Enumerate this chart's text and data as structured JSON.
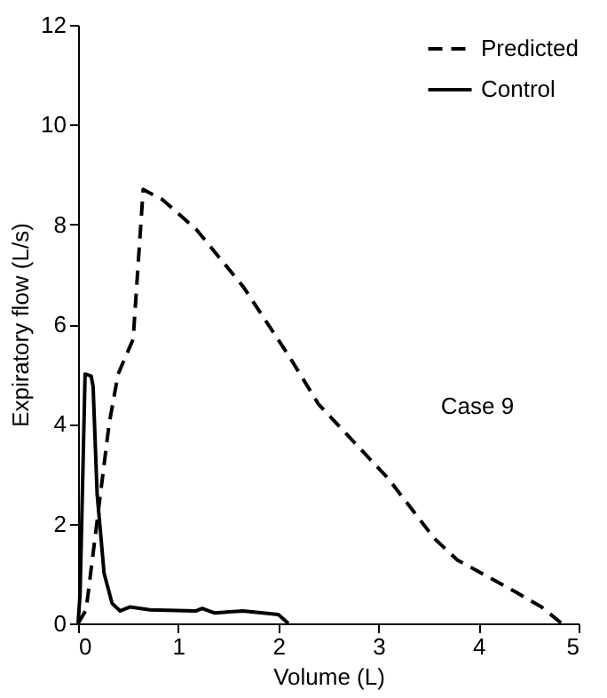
{
  "chart_data": {
    "type": "line",
    "xlabel": "Volume (L)",
    "ylabel": "Expiratory flow (L/s)",
    "xlim": [
      0,
      5
    ],
    "xticks": [
      0,
      1,
      2,
      3,
      4,
      5
    ],
    "ylim": [
      0,
      12
    ],
    "yticks": [
      0,
      2,
      4,
      6,
      8,
      10,
      12
    ],
    "grid": false,
    "legend": "top right",
    "marker": "none",
    "annotations": [
      "Case 9"
    ],
    "series": [
      {
        "name": "Predicted",
        "color": "#000000",
        "line_style": "dashed",
        "x": [
          0,
          0.08,
          0.31,
          0.4,
          0.55,
          0.65,
          0.84,
          1.18,
          1.65,
          2.11,
          2.4,
          3.1,
          3.56,
          3.79,
          4.37,
          4.63,
          4.83
        ],
        "values": [
          0,
          0.27,
          4.0,
          5.0,
          5.7,
          8.7,
          8.5,
          7.9,
          6.75,
          5.35,
          4.4,
          2.9,
          1.7,
          1.27,
          0.63,
          0.33,
          0
        ]
      },
      {
        "name": "Control",
        "color": "#000000",
        "line_style": "solid",
        "x": [
          0,
          0.02,
          0.07,
          0.13,
          0.15,
          0.19,
          0.26,
          0.34,
          0.42,
          0.52,
          0.72,
          1.18,
          1.24,
          1.36,
          1.65,
          2.0,
          2.1
        ],
        "values": [
          0,
          0.6,
          5.0,
          4.96,
          4.75,
          2.6,
          1.0,
          0.4,
          0.25,
          0.33,
          0.27,
          0.25,
          0.3,
          0.21,
          0.25,
          0.18,
          0
        ]
      }
    ]
  }
}
